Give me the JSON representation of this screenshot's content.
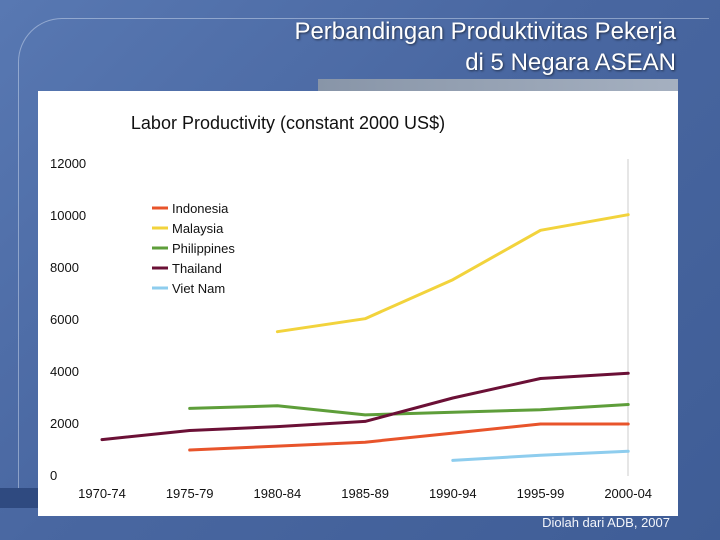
{
  "slide": {
    "title_line1": "Perbandingan Produktivitas Pekerja",
    "title_line2": "di 5 Negara ASEAN",
    "source_note": "Diolah dari ADB, 2007"
  },
  "chart_data": {
    "type": "line",
    "title": "Labor Productivity (constant 2000 US$)",
    "xlabel": "",
    "ylabel": "",
    "categories": [
      "1970-74",
      "1975-79",
      "1980-84",
      "1985-89",
      "1990-94",
      "1995-99",
      "2000-04"
    ],
    "ylim": [
      0,
      12000
    ],
    "yticks": [
      0,
      2000,
      4000,
      6000,
      8000,
      10000,
      12000
    ],
    "grid": false,
    "legend_position": "top-left",
    "series": [
      {
        "name": "Indonesia",
        "color": "#e8542b",
        "values": [
          null,
          1000,
          1150,
          1300,
          1650,
          2000,
          2000
        ]
      },
      {
        "name": "Malaysia",
        "color": "#f2d33c",
        "values": [
          null,
          null,
          5550,
          6050,
          7550,
          9450,
          10050
        ]
      },
      {
        "name": "Philippines",
        "color": "#5e9e3a",
        "values": [
          null,
          2600,
          2700,
          2350,
          2450,
          2550,
          2750
        ]
      },
      {
        "name": "Thailand",
        "color": "#6b1036",
        "values": [
          1400,
          1750,
          1900,
          2100,
          3000,
          3750,
          3950
        ]
      },
      {
        "name": "Viet Nam",
        "color": "#8ecdee",
        "values": [
          null,
          null,
          null,
          null,
          600,
          800,
          950
        ]
      }
    ]
  }
}
